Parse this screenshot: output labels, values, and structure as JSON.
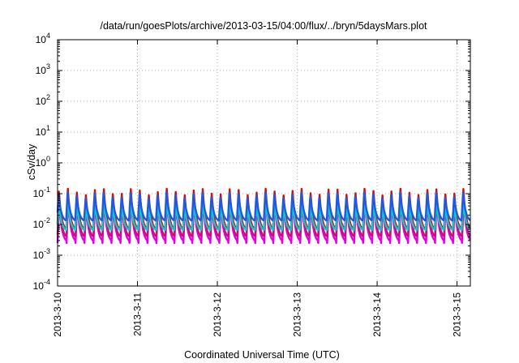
{
  "chart_data": {
    "type": "line",
    "title": "/data/run/goesPlots/archive/2013-03-15/04:00/flux/../bryn/5daysMars.plot",
    "xlabel": "Coordinated Universal Time (UTC)",
    "ylabel": "cSv/day",
    "y_scale": "log",
    "ylim": [
      0.0001,
      10000
    ],
    "y_ticks": [
      {
        "value": 0.0001,
        "base": "10",
        "exp": "-4"
      },
      {
        "value": 0.001,
        "base": "10",
        "exp": "-3"
      },
      {
        "value": 0.01,
        "base": "10",
        "exp": "-2"
      },
      {
        "value": 0.1,
        "base": "10",
        "exp": "-1"
      },
      {
        "value": 1,
        "base": "10",
        "exp": "0"
      },
      {
        "value": 10,
        "base": "10",
        "exp": "1"
      },
      {
        "value": 100,
        "base": "10",
        "exp": "2"
      },
      {
        "value": 1000,
        "base": "10",
        "exp": "3"
      },
      {
        "value": 10000,
        "base": "10",
        "exp": "4"
      }
    ],
    "xlim": [
      "2013-03-10",
      "2013-03-15 04:00"
    ],
    "x_ticks": [
      "2013-3-10",
      "2013-3-11",
      "2013-3-12",
      "2013-3-13",
      "2013-3-14",
      "2013-3-15"
    ],
    "grid": true,
    "orbit_period_hours": 2.7,
    "series": [
      {
        "color": "#e000e0",
        "peak": 0.06,
        "trough": 0.0025
      },
      {
        "color": "#c8107a",
        "peak": 0.075,
        "trough": 0.0035
      },
      {
        "color": "#d01010",
        "peak": 0.12,
        "trough": 0.006
      },
      {
        "color": "#10c8c8",
        "peak": 0.05,
        "trough": 0.006
      },
      {
        "color": "#2058e0",
        "peak": 0.1,
        "trough": 0.012
      }
    ]
  }
}
